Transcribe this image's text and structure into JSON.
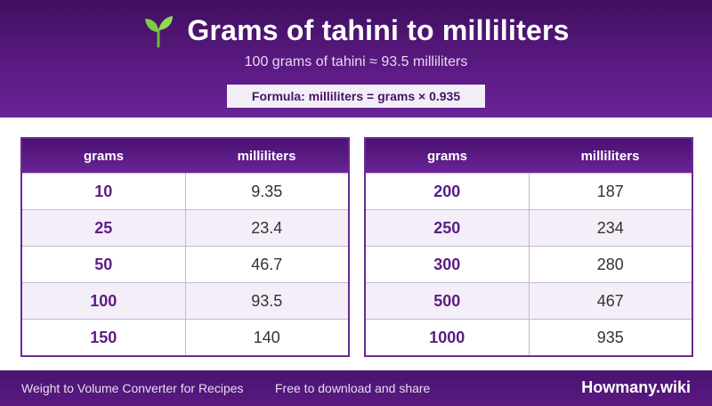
{
  "header": {
    "title": "Grams of tahini to milliliters",
    "title_icon": "seedling-icon",
    "subtitle": "100 grams of tahini ≈ 93.5 milliliters",
    "formula": "Formula: milliliters = grams × 0.935"
  },
  "tables": [
    {
      "headers": [
        "grams",
        "milliliters"
      ],
      "rows": [
        [
          "10",
          "9.35"
        ],
        [
          "25",
          "23.4"
        ],
        [
          "50",
          "46.7"
        ],
        [
          "100",
          "93.5"
        ],
        [
          "150",
          "140"
        ]
      ]
    },
    {
      "headers": [
        "grams",
        "milliliters"
      ],
      "rows": [
        [
          "200",
          "187"
        ],
        [
          "250",
          "234"
        ],
        [
          "300",
          "280"
        ],
        [
          "500",
          "467"
        ],
        [
          "1000",
          "935"
        ]
      ]
    }
  ],
  "footer": {
    "left": "Weight to Volume Converter for Recipes",
    "middle": "Free to download and share",
    "brand": "Howmany.wiki"
  },
  "colors": {
    "header_purple": "#5a1a82",
    "accent_text": "#5b1d84",
    "row_alt": "#f3eef8"
  }
}
